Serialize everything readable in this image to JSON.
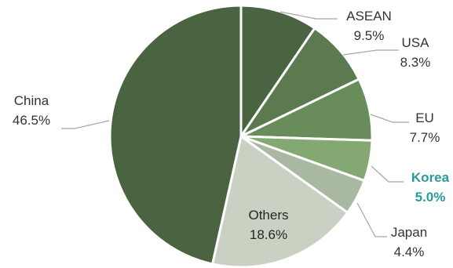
{
  "chart_data": {
    "type": "pie",
    "title": "",
    "slices": [
      {
        "label": "ASEAN",
        "value": 9.5,
        "value_label": "9.5%",
        "color": "#4a6340"
      },
      {
        "label": "USA",
        "value": 8.3,
        "value_label": "8.3%",
        "color": "#5b7a4f"
      },
      {
        "label": "EU",
        "value": 7.7,
        "value_label": "7.7%",
        "color": "#698c5b"
      },
      {
        "label": "Korea",
        "value": 5.0,
        "value_label": "5.0%",
        "color": "#83a872",
        "label_color": "#2b9a9a",
        "highlight": true
      },
      {
        "label": "Japan",
        "value": 4.4,
        "value_label": "4.4%",
        "color": "#a9b8a0"
      },
      {
        "label": "Others",
        "value": 18.6,
        "value_label": "18.6%",
        "color": "#c9d1c3"
      },
      {
        "label": "China",
        "value": 46.5,
        "value_label": "46.5%",
        "color": "#4a6340"
      }
    ],
    "start_angle_deg": 0,
    "direction": "clockwise",
    "legend": "none",
    "slice_border_color": "#ffffff",
    "leader_line_color": "#a6a6a6"
  }
}
